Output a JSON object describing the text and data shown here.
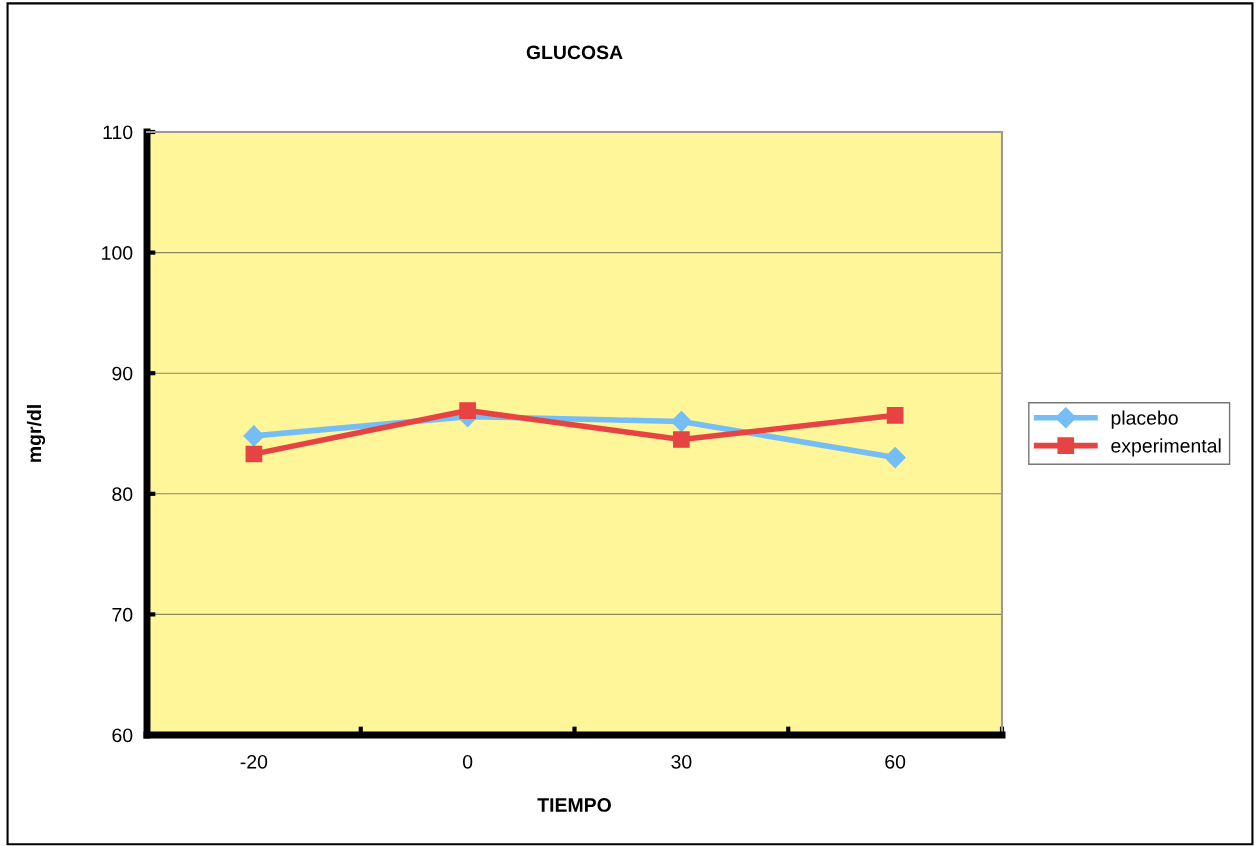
{
  "chart_data": {
    "type": "line",
    "title": "GLUCOSA",
    "xlabel": "TIEMPO",
    "ylabel": "mgr/dl",
    "categories": [
      "-20",
      "0",
      "30",
      "60"
    ],
    "series": [
      {
        "name": "placebo",
        "color": "#74bdf5",
        "marker": "diamond",
        "values": [
          84.8,
          86.4,
          86.0,
          83.0
        ]
      },
      {
        "name": "experimental",
        "color": "#e54443",
        "marker": "square",
        "values": [
          83.3,
          86.9,
          84.5,
          86.5
        ]
      }
    ],
    "ylim": [
      60,
      110
    ],
    "yticks": [
      60,
      70,
      80,
      90,
      100,
      110
    ],
    "grid": "y",
    "legend": "right",
    "line_style": "solid"
  }
}
